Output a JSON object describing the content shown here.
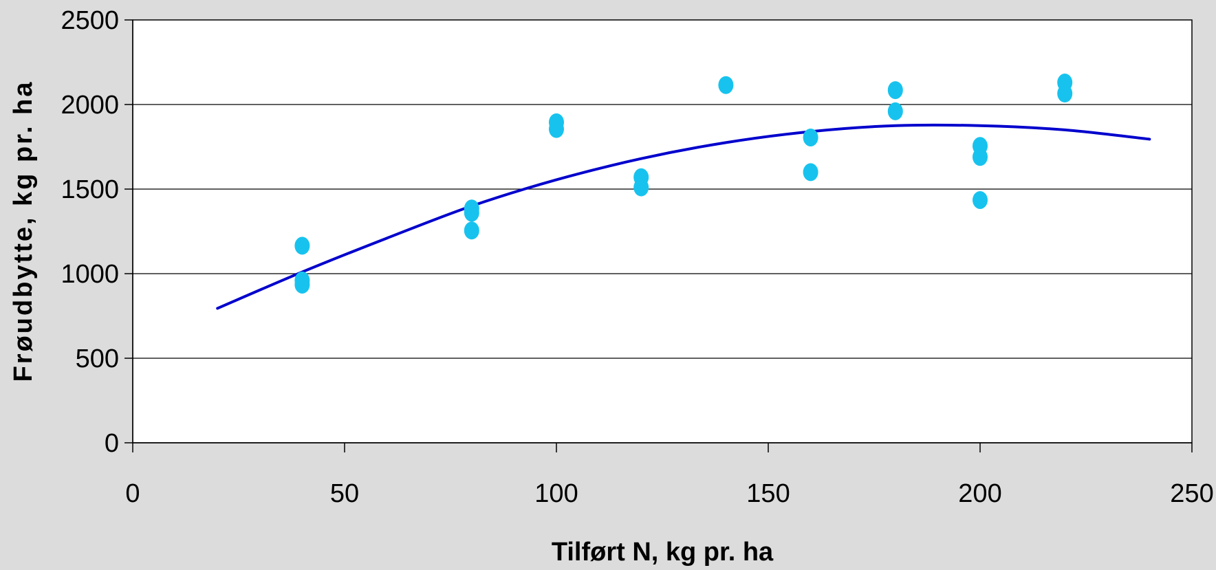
{
  "chart_data": {
    "type": "scatter",
    "xlabel": "Tilført N, kg pr. ha",
    "ylabel": "Frøudbytte, kg pr. ha",
    "xlim": [
      0,
      250
    ],
    "ylim": [
      0,
      2500
    ],
    "x_ticks": [
      0,
      50,
      100,
      150,
      200,
      250
    ],
    "y_ticks": [
      0,
      500,
      1000,
      1500,
      2000,
      2500
    ],
    "x_tick_labels": [
      "0",
      "50",
      "100",
      "150",
      "200",
      "250"
    ],
    "y_tick_labels": [
      "0",
      "500",
      "1000",
      "1500",
      "2000",
      "2500"
    ],
    "grid": "horizontal",
    "legend": "none",
    "series": [
      {
        "kind": "scatter",
        "color": "#17C3EE",
        "points": [
          {
            "x": 40,
            "y": 1165
          },
          {
            "x": 40,
            "y": 960
          },
          {
            "x": 40,
            "y": 935
          },
          {
            "x": 80,
            "y": 1385
          },
          {
            "x": 80,
            "y": 1360
          },
          {
            "x": 80,
            "y": 1255
          },
          {
            "x": 100,
            "y": 1895
          },
          {
            "x": 100,
            "y": 1855
          },
          {
            "x": 120,
            "y": 1570
          },
          {
            "x": 120,
            "y": 1510
          },
          {
            "x": 140,
            "y": 2115
          },
          {
            "x": 160,
            "y": 1805
          },
          {
            "x": 160,
            "y": 1600
          },
          {
            "x": 180,
            "y": 2085
          },
          {
            "x": 180,
            "y": 1960
          },
          {
            "x": 200,
            "y": 1755
          },
          {
            "x": 200,
            "y": 1690
          },
          {
            "x": 200,
            "y": 1435
          },
          {
            "x": 220,
            "y": 2130
          },
          {
            "x": 220,
            "y": 2065
          }
        ]
      },
      {
        "kind": "trendline",
        "color": "#0000CD",
        "x": [
          20,
          40,
          60,
          80,
          100,
          120,
          140,
          160,
          180,
          200,
          220,
          240
        ],
        "y": [
          795,
          1010,
          1210,
          1400,
          1555,
          1680,
          1775,
          1840,
          1875,
          1875,
          1850,
          1795
        ]
      }
    ]
  }
}
